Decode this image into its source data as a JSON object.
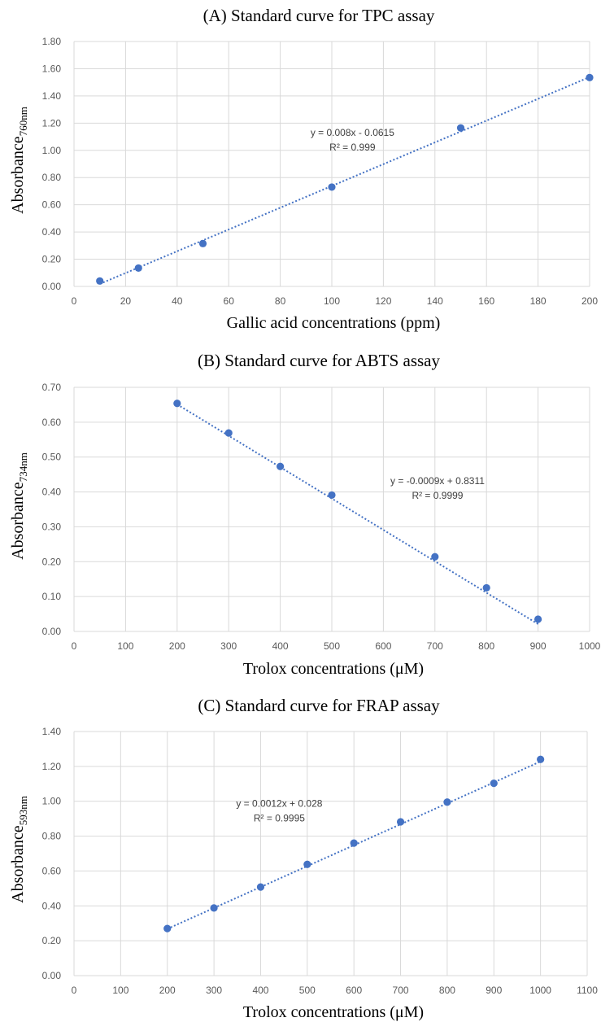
{
  "chart_data": [
    {
      "type": "scatter",
      "title": "(A) Standard curve for TPC assay",
      "xlabel": "Gallic acid concentrations (ppm)",
      "ylabel": "Absorbance",
      "ylabel_sub": "760nm",
      "xlim": [
        0,
        200
      ],
      "xtick_step": 20,
      "ylim": [
        0,
        1.8
      ],
      "ytick_step": 0.2,
      "x": [
        10,
        25,
        50,
        100,
        150,
        200
      ],
      "y": [
        0.04,
        0.135,
        0.315,
        0.73,
        1.165,
        1.535
      ],
      "trendline": {
        "slope": 0.008,
        "intercept": -0.0615,
        "x_range": [
          10,
          200
        ],
        "style": "dotted"
      },
      "equation": "y = 0.008x - 0.0615",
      "r2": "R² = 0.999",
      "annotation_at": [
        108,
        1.0
      ],
      "grid": true,
      "color": "#4472c4"
    },
    {
      "type": "scatter",
      "title": "(B) Standard curve for ABTS assay",
      "xlabel": "Trolox concentrations (μM)",
      "ylabel": "Absorbance",
      "ylabel_sub": "734nm",
      "xlim": [
        0,
        1000
      ],
      "xtick_step": 100,
      "ylim": [
        0,
        0.7
      ],
      "ytick_step": 0.1,
      "x": [
        200,
        300,
        400,
        500,
        700,
        800,
        900
      ],
      "y": [
        0.654,
        0.569,
        0.473,
        0.391,
        0.214,
        0.125,
        0.035
      ],
      "trendline": {
        "slope": -0.0009,
        "intercept": 0.8311,
        "x_range": [
          200,
          900
        ],
        "style": "dotted"
      },
      "equation": "y = -0.0009x + 0.8311",
      "r2": "R² = 0.9999",
      "annotation_at": [
        705,
        0.38
      ],
      "grid": true,
      "color": "#4472c4"
    },
    {
      "type": "scatter",
      "title": "(C) Standard curve for FRAP assay",
      "xlabel": "Trolox concentrations (μM)",
      "ylabel": "Absorbance",
      "ylabel_sub": "593nm",
      "xlim": [
        0,
        1100
      ],
      "xtick_step": 100,
      "ylim": [
        0,
        1.4
      ],
      "ytick_step": 0.2,
      "x": [
        200,
        300,
        400,
        500,
        600,
        700,
        800,
        900,
        1000
      ],
      "y": [
        0.27,
        0.388,
        0.508,
        0.638,
        0.76,
        0.882,
        0.995,
        1.103,
        1.24
      ],
      "trendline": {
        "slope": 0.0012,
        "intercept": 0.028,
        "x_range": [
          200,
          1000
        ],
        "style": "dotted"
      },
      "equation": "y = 0.0012x + 0.028",
      "r2": "R² = 0.9995",
      "annotation_at": [
        440,
        0.885
      ],
      "grid": true,
      "color": "#4472c4"
    }
  ]
}
